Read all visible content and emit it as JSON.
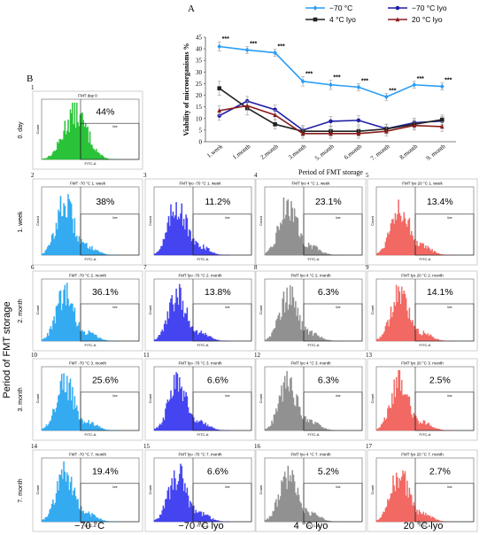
{
  "figure": {
    "panel_a_label": "A",
    "panel_b_label": "B",
    "row_axis_label": "Period of FMT storage",
    "gate_label": "live",
    "histogram_axis_label": "FITC-A",
    "count_label": "Count",
    "panels": [
      {
        "num": "1",
        "title": "FMT day 0",
        "percent": "44%",
        "row_label": "0. day",
        "color": "#1fbf2f"
      },
      {
        "num": "2",
        "title": "FMT -70 °C 1. week",
        "percent": "38%",
        "row_label": "1. week",
        "color": "#2aa6f0"
      },
      {
        "num": "3",
        "title": "FMT lyo -70 °C 1. week",
        "percent": "11.2%",
        "color": "#3a3af0"
      },
      {
        "num": "4",
        "title": "FMT lyo 4 °C 1. week",
        "percent": "23.1%",
        "color": "#8c8c8c"
      },
      {
        "num": "5",
        "title": "FMT lyo 20 °C 1. week",
        "percent": "13.4%",
        "color": "#f2605a"
      },
      {
        "num": "6",
        "title": "FMT -70 °C 2. month",
        "percent": "36.1%",
        "row_label": "2. month",
        "color": "#2aa6f0"
      },
      {
        "num": "7",
        "title": "FMT lyo -70 °C 2. month",
        "percent": "13.8%",
        "color": "#3a3af0"
      },
      {
        "num": "8",
        "title": "FMT lyo 4 °C 2. month",
        "percent": "6.3%",
        "color": "#8c8c8c"
      },
      {
        "num": "9",
        "title": "FMT lyo 20 °C 2. month",
        "percent": "14.1%",
        "color": "#f2605a"
      },
      {
        "num": "10",
        "title": "FMT -70 °C 3. month",
        "percent": "25.6%",
        "row_label": "3. month",
        "color": "#2aa6f0"
      },
      {
        "num": "11",
        "title": "FMT lyo -70 °C 3. month",
        "percent": "6.6%",
        "color": "#3a3af0"
      },
      {
        "num": "12",
        "title": "FMT lyo 4 °C 3. month",
        "percent": "6.3%",
        "color": "#8c8c8c"
      },
      {
        "num": "13",
        "title": "FMT lyo 20 °C 3. month",
        "percent": "2.5%",
        "color": "#f2605a"
      },
      {
        "num": "14",
        "title": "FMT -70 °C 7. month",
        "percent": "19.4%",
        "row_label": "7. month",
        "color": "#2aa6f0"
      },
      {
        "num": "15",
        "title": "FMT lyo -70 °C 7. month",
        "percent": "6.6%",
        "color": "#3a3af0"
      },
      {
        "num": "16",
        "title": "FMT lyo 4 °C 7. month",
        "percent": "5.2%",
        "color": "#8c8c8c"
      },
      {
        "num": "17",
        "title": "FMT lyo 20 °C 7. month",
        "percent": "2.7%",
        "color": "#f2605a"
      }
    ],
    "column_labels": [
      "−70 °C",
      "−70 °C lyo",
      "4 °C lyo",
      "20 °C lyo"
    ]
  },
  "chart_data": {
    "type": "line",
    "title": "",
    "xlabel": "Period of FMT storage",
    "ylabel": "Viability of microorganisms %",
    "ylim": [
      0,
      45
    ],
    "yticks": [
      0,
      5,
      10,
      15,
      20,
      25,
      30,
      35,
      40,
      45
    ],
    "categories": [
      "1.week",
      "1.month",
      "2.month",
      "3.month",
      "5. month",
      "6.month",
      "7. month",
      "8.month",
      "9. month"
    ],
    "legend_position": "top",
    "significance_marker": "***",
    "significant_indices": [
      0,
      1,
      2,
      3,
      4,
      5,
      6,
      7,
      8
    ],
    "series": [
      {
        "name": "−70 °C",
        "color": "#2a9df4",
        "marker": "diamond",
        "values": [
          41,
          39.5,
          38.3,
          26,
          24.5,
          23.5,
          19.3,
          24.5,
          23.8
        ],
        "errors": [
          2,
          1.5,
          1.5,
          2,
          2,
          1.5,
          1.5,
          1.5,
          1.5
        ]
      },
      {
        "name": "−70 °C lyo",
        "color": "#1f1fa8",
        "marker": "circle",
        "values": [
          11.2,
          17.5,
          13.8,
          5,
          8.8,
          9.2,
          5.6,
          8.2,
          8.9
        ],
        "errors": [
          2,
          2,
          2,
          2,
          2,
          2,
          2,
          2,
          2
        ]
      },
      {
        "name": "4 °C lyo",
        "color": "#222222",
        "marker": "square",
        "values": [
          23,
          14.5,
          7.5,
          4.5,
          4.5,
          4.5,
          5.5,
          7.5,
          9.5
        ],
        "errors": [
          3,
          3,
          2,
          2,
          2,
          2,
          2,
          2,
          2
        ]
      },
      {
        "name": "20 °C lyo",
        "color": "#8b1c1c",
        "marker": "triangle",
        "values": [
          13.4,
          15.5,
          11.5,
          3.5,
          3.5,
          3.5,
          4.5,
          7,
          6.5
        ],
        "errors": [
          2,
          2,
          2,
          2,
          2,
          2,
          2,
          2,
          2
        ]
      }
    ]
  }
}
